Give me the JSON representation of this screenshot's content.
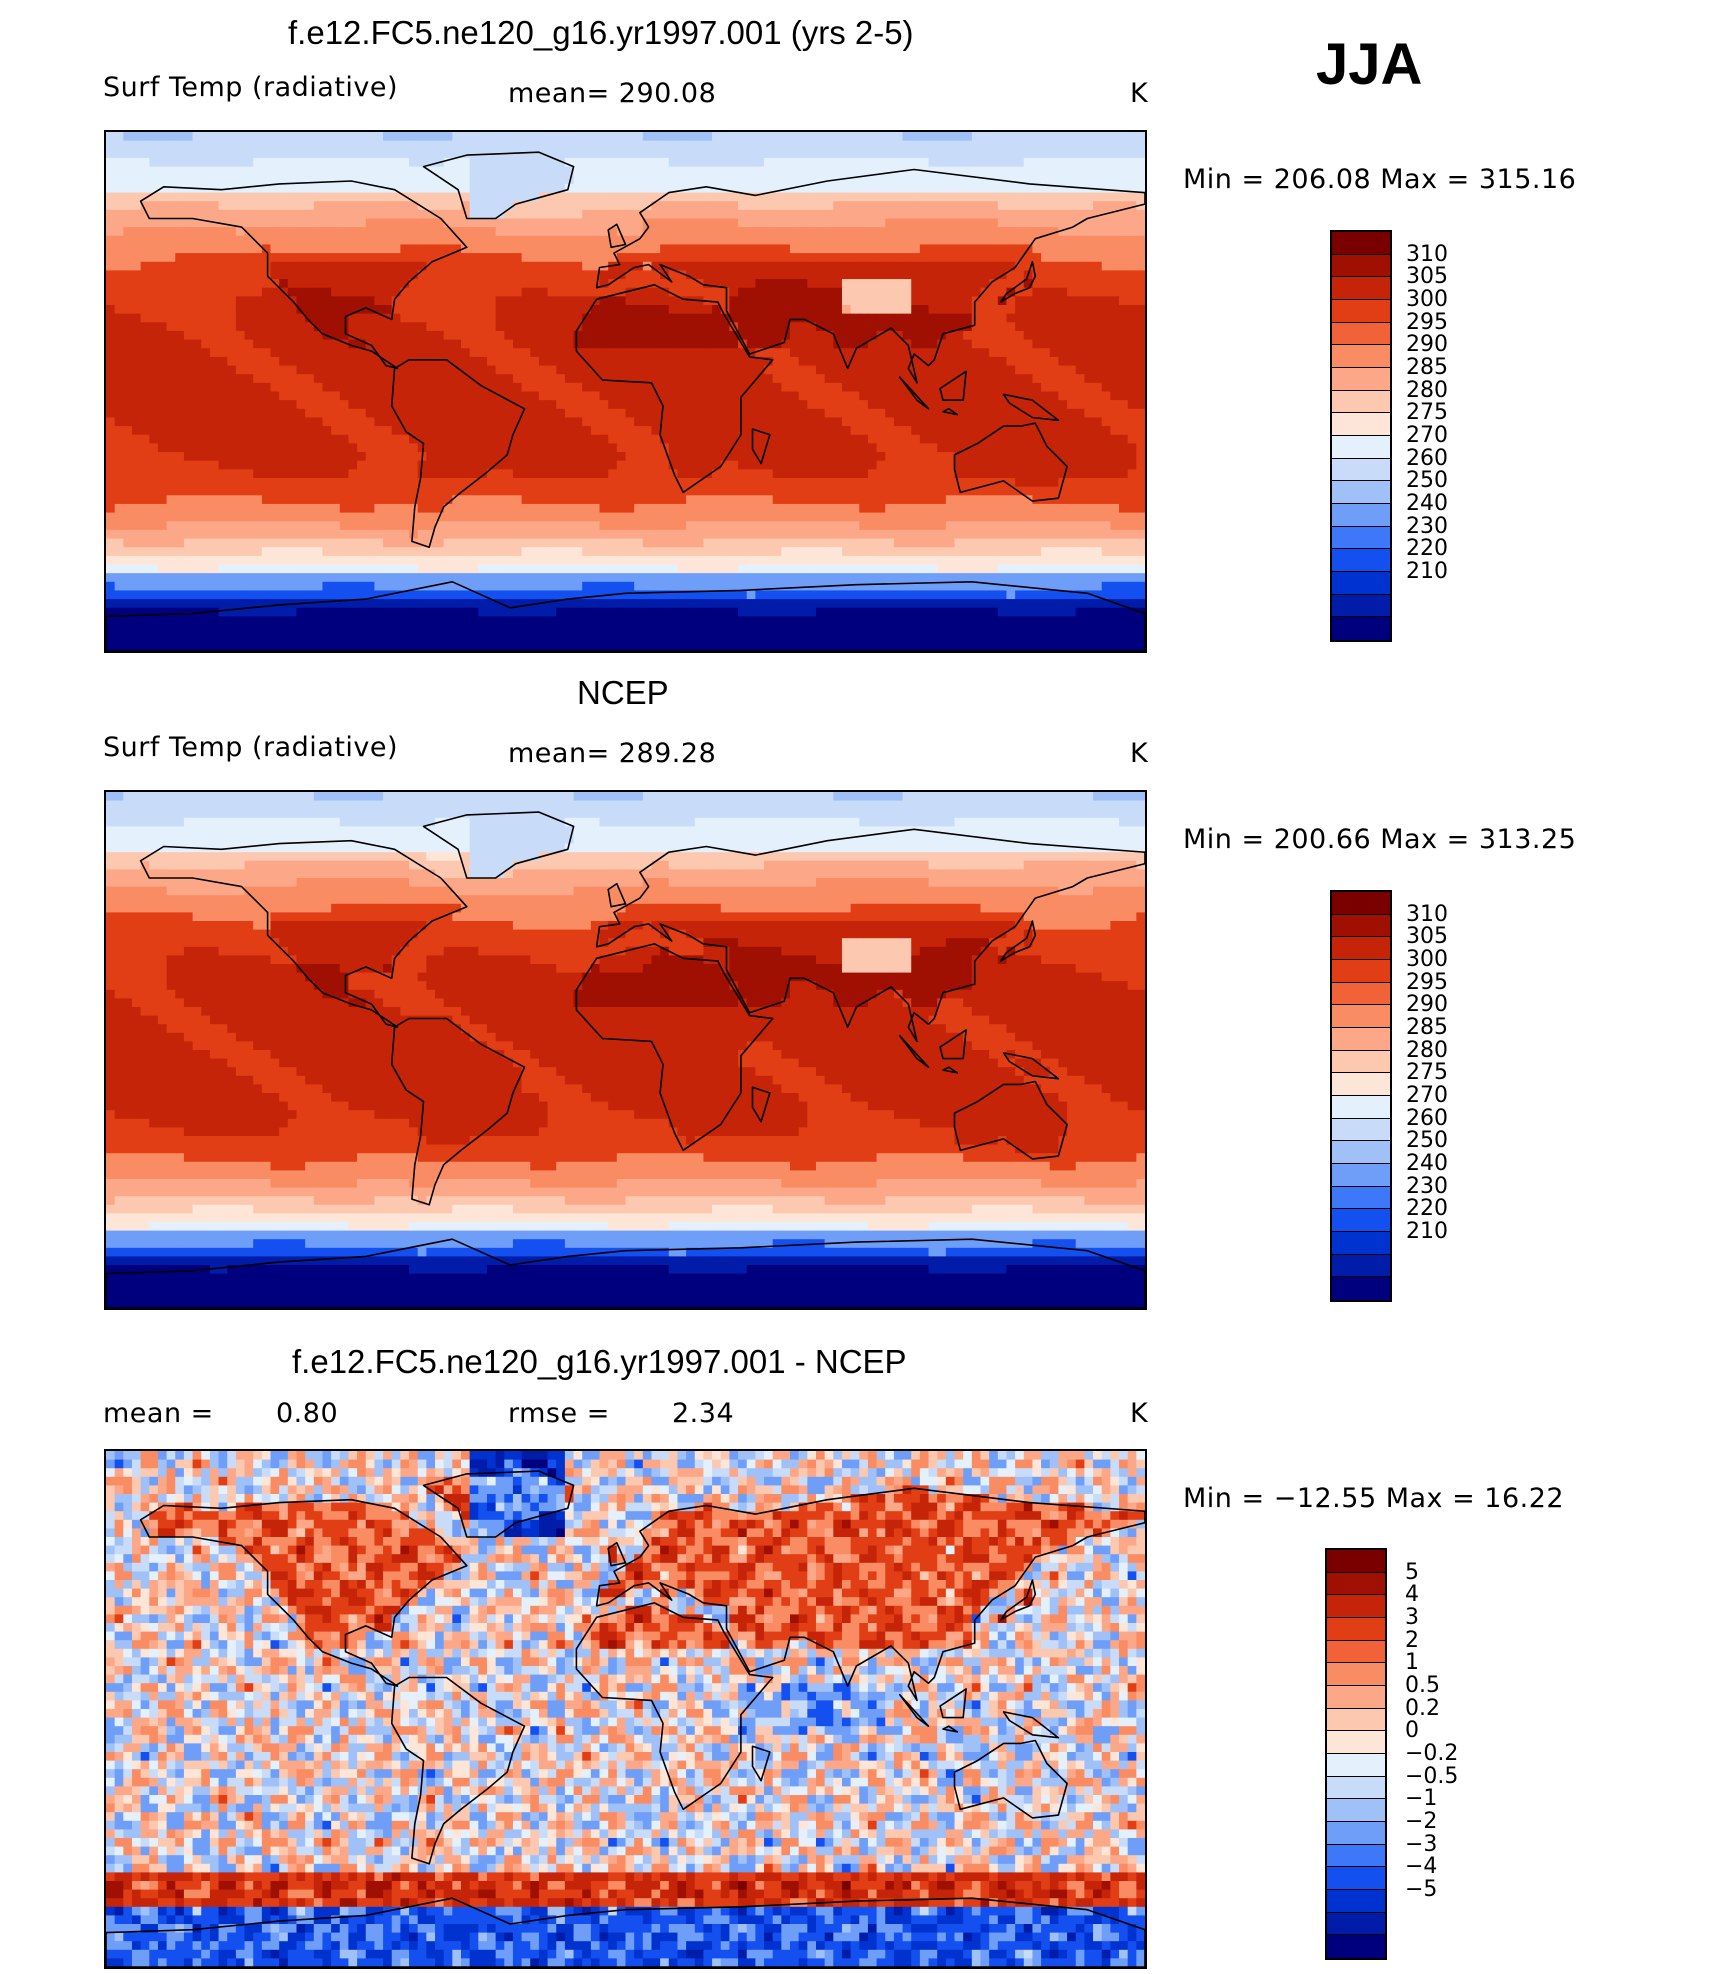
{
  "season": "JJA",
  "colors": {
    "abs": [
      "#00007f",
      "#001ca8",
      "#0032cf",
      "#1450f0",
      "#3c78f8",
      "#6e9ef8",
      "#a0c0f8",
      "#c8dcfa",
      "#e4f0fc",
      "#fde6d8",
      "#fcc8b0",
      "#fca888",
      "#fa8c64",
      "#f26238",
      "#e23e16",
      "#c62408",
      "#a01002",
      "#7a0000"
    ],
    "diff": [
      "#00007f",
      "#001ca8",
      "#0032cf",
      "#1450f0",
      "#3c78f8",
      "#6e9ef8",
      "#a0c0f8",
      "#c8dcfa",
      "#e4f0fc",
      "#fde6d8",
      "#fcc8b0",
      "#fca888",
      "#fa8c64",
      "#f26238",
      "#e23e16",
      "#c62408",
      "#a01002",
      "#7a0000"
    ]
  },
  "panels": [
    {
      "title": "f.e12.FC5.ne120_g16.yr1997.001 (yrs 2-5)",
      "left_label": "Surf Temp (radiative)",
      "center_label": "mean= 290.08",
      "units": "K",
      "minmax": "Min = 206.08 Max = 315.16"
    },
    {
      "title": "NCEP",
      "left_label": "Surf Temp (radiative)",
      "center_label": "mean= 289.28",
      "units": "K",
      "minmax": "Min = 200.66 Max = 313.25"
    },
    {
      "title": "f.e12.FC5.ne120_g16.yr1997.001 - NCEP",
      "left_label": "mean =",
      "left_value": "0.80",
      "center_label": "rmse =",
      "center_value": "2.34",
      "units": "K",
      "minmax": "Min = −12.55 Max = 16.22"
    }
  ],
  "colorbar_abs": [
    "310",
    "305",
    "300",
    "295",
    "290",
    "285",
    "280",
    "275",
    "270",
    "260",
    "250",
    "240",
    "230",
    "220",
    "210"
  ],
  "colorbar_diff": [
    "5",
    "4",
    "3",
    "2",
    "1",
    "0.5",
    "0.2",
    "0",
    "−0.2",
    "−0.5",
    "−1",
    "−2",
    "−3",
    "−4",
    "−5"
  ]
}
